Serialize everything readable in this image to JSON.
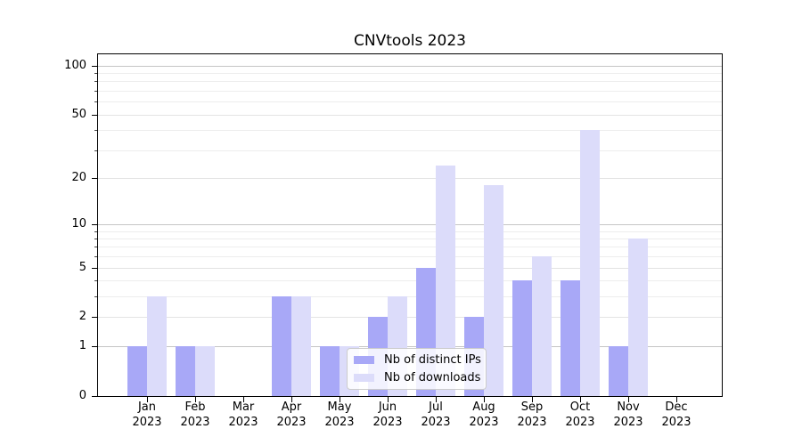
{
  "figure": {
    "background": "#ffffff",
    "axis_color": "#000000",
    "grid_major_color": "#c5c5c5",
    "grid_minor_color": "#ededed"
  },
  "chart_data": {
    "type": "bar",
    "title": "CNVtools 2023",
    "xlabel": "",
    "ylabel": "",
    "y_scale": "log10(1+y)",
    "ylim": [
      0,
      118
    ],
    "grid": "horizontal",
    "legend_position": "lower center (inside axes)",
    "y_ticks": [
      0,
      1,
      2,
      5,
      10,
      20,
      50,
      100
    ],
    "y_minor_ticks": [
      3,
      4,
      6,
      7,
      8,
      9,
      30,
      40,
      60,
      70,
      80,
      90
    ],
    "categories": [
      "Jan",
      "Feb",
      "Mar",
      "Apr",
      "May",
      "Jun",
      "Jul",
      "Aug",
      "Sep",
      "Oct",
      "Nov",
      "Dec"
    ],
    "category_year": "2023",
    "series": [
      {
        "name": "Nb of distinct IPs",
        "color": "#a8a8f7",
        "values": [
          1,
          1,
          0,
          3,
          1,
          2,
          5,
          2,
          4,
          4,
          1,
          0
        ]
      },
      {
        "name": "Nb of downloads",
        "color": "#dcdcfa",
        "values": [
          3,
          1,
          0,
          3,
          1,
          3,
          24,
          18,
          6,
          40,
          8,
          0
        ]
      }
    ]
  }
}
